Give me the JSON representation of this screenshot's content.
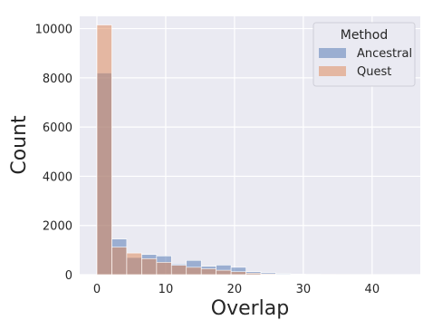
{
  "chart_data": {
    "type": "bar",
    "xlabel": "Overlap",
    "ylabel": "Count",
    "xlim": [
      -2.5,
      47
    ],
    "ylim": [
      0,
      10500
    ],
    "xticks": [
      0,
      10,
      20,
      30,
      40
    ],
    "yticks": [
      0,
      2000,
      4000,
      6000,
      8000,
      10000
    ],
    "grid": true,
    "legend": {
      "title": "Method",
      "placement": "top-right"
    },
    "bin_edges": [
      0,
      2.17,
      4.33,
      6.5,
      8.67,
      10.83,
      13,
      15.17,
      17.33,
      19.5,
      21.67,
      23.83,
      26,
      28.17,
      30.33,
      32.5,
      34.67,
      36.83,
      39,
      41.17,
      43.33,
      45.5
    ],
    "series": [
      {
        "name": "Ancestral",
        "color": "#4c72b0",
        "values": [
          8200,
          1450,
          700,
          820,
          760,
          430,
          580,
          340,
          390,
          300,
          120,
          80,
          40,
          25,
          15,
          10,
          8,
          5,
          4,
          3,
          2
        ]
      },
      {
        "name": "Quest",
        "color": "#dd8452",
        "values": [
          10150,
          1120,
          880,
          650,
          500,
          380,
          300,
          240,
          180,
          120,
          60,
          30,
          15,
          8,
          5,
          3,
          2,
          1,
          1,
          1,
          0
        ]
      }
    ]
  }
}
